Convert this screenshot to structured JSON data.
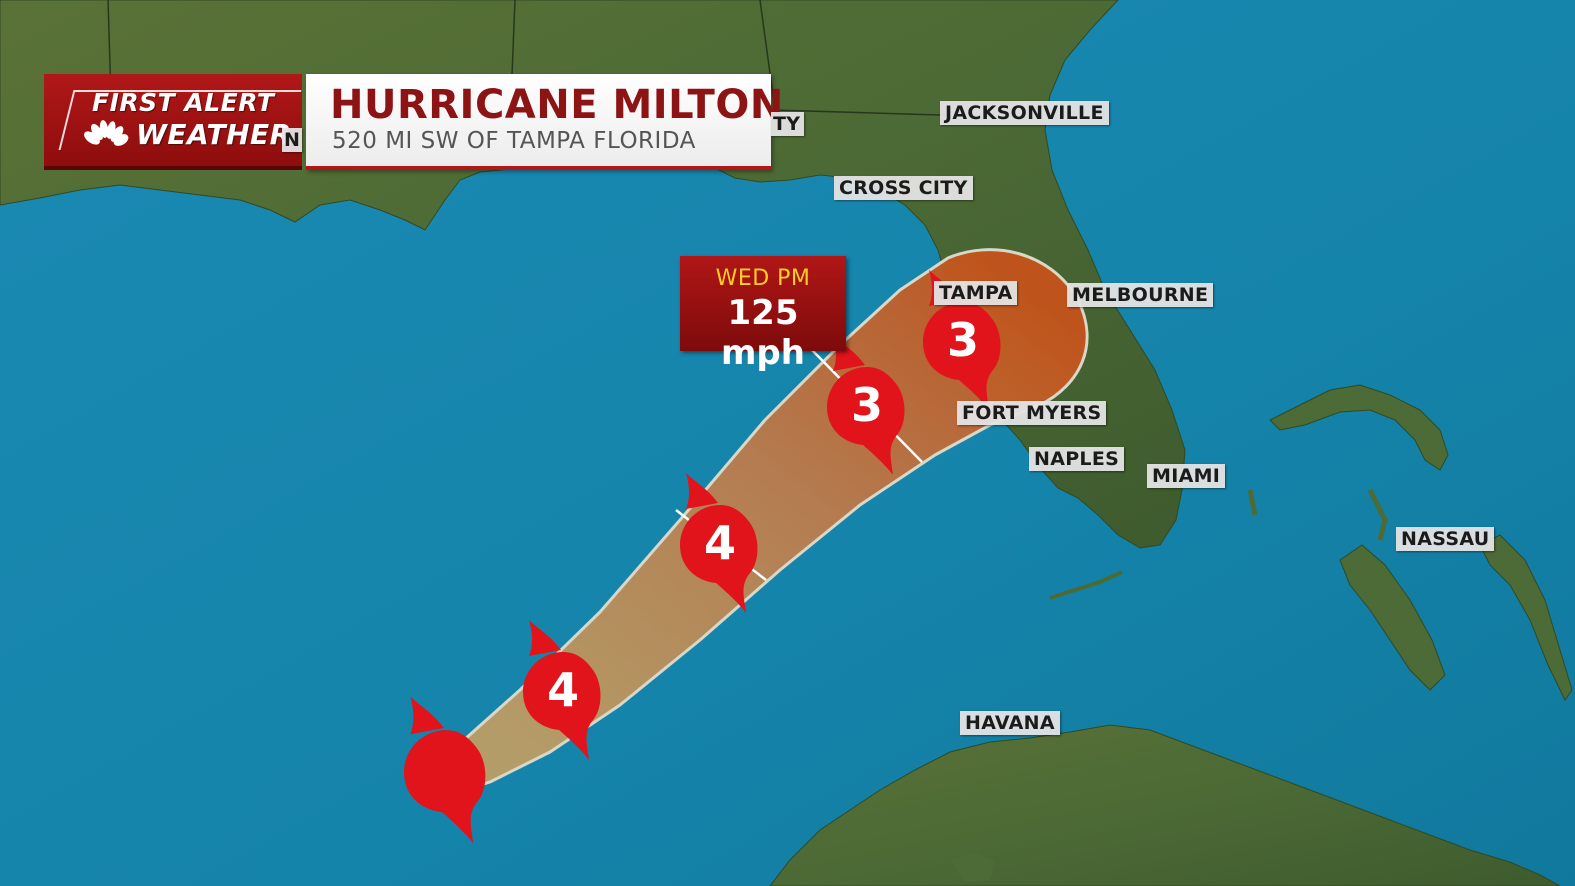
{
  "branding": {
    "line1": "FIRST ALERT",
    "line2": "WEATHER",
    "logo": "nbc-peacock-icon"
  },
  "header": {
    "title": "HURRICANE MILTON",
    "subtitle": "520 MI SW OF TAMPA FLORIDA"
  },
  "callout": {
    "time": "WED PM",
    "wind": "125 mph"
  },
  "cities": {
    "jacksonville": "JACKSONVILLE",
    "cross_city": "CROSS CITY",
    "tampa": "TAMPA",
    "melbourne": "MELBOURNE",
    "fort_myers": "FORT MYERS",
    "naples": "NAPLES",
    "miami": "MIAMI",
    "nassau": "NASSAU",
    "havana": "HAVANA",
    "partial_left": "N",
    "partial_right": "TY"
  },
  "track_points": [
    {
      "category": "",
      "icon": "hurricane-current-icon"
    },
    {
      "category": "4",
      "icon": "hurricane-icon"
    },
    {
      "category": "4",
      "icon": "hurricane-icon"
    },
    {
      "category": "3",
      "icon": "hurricane-icon"
    },
    {
      "category": "3",
      "icon": "hurricane-icon"
    }
  ],
  "colors": {
    "ocean": "#1585ac",
    "land": "#4f6a35",
    "cone_fill": "#c9702e",
    "hurricane_red": "#e2141b",
    "brand_red": "#b01818",
    "callout_time": "#ffcc2a"
  }
}
